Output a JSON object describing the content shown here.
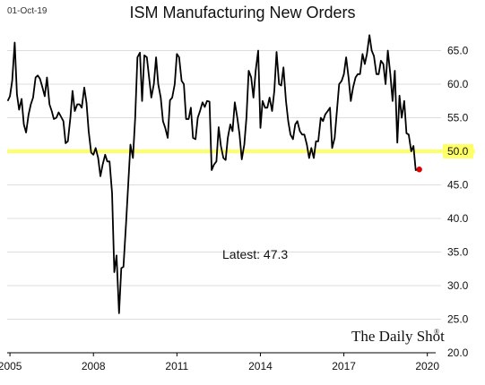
{
  "header": {
    "date": "01-Oct-19",
    "title": "ISM Manufacturing New Orders"
  },
  "watermark": "The Daily Shot",
  "chart_data": {
    "type": "line",
    "title": "ISM Manufacturing New Orders",
    "xlabel": "",
    "ylabel": "",
    "xlim": [
      2004.9,
      2020.3
    ],
    "ylim": [
      20.0,
      68.0
    ],
    "x_ticks": [
      {
        "value": 2005,
        "label": "2005"
      },
      {
        "value": 2008,
        "label": "2008"
      },
      {
        "value": 2011,
        "label": "2011"
      },
      {
        "value": 2014,
        "label": "2014"
      },
      {
        "value": 2017,
        "label": "2017"
      },
      {
        "value": 2020,
        "label": "2020"
      }
    ],
    "y_ticks": [
      {
        "value": 20.0,
        "label": "20.0"
      },
      {
        "value": 25.0,
        "label": "25.0"
      },
      {
        "value": 30.0,
        "label": "30.0"
      },
      {
        "value": 35.0,
        "label": "35.0"
      },
      {
        "value": 40.0,
        "label": "40.0"
      },
      {
        "value": 45.0,
        "label": "45.0"
      },
      {
        "value": 50.0,
        "label": "50.0",
        "highlight": true
      },
      {
        "value": 55.0,
        "label": "55.0"
      },
      {
        "value": 60.0,
        "label": "60.0"
      },
      {
        "value": 65.0,
        "label": "65.0"
      }
    ],
    "reference_line": {
      "value": 50.0,
      "color": "#ffff66"
    },
    "annotation": "Latest:  47.3",
    "latest_point": {
      "x": 2019.71,
      "y": 47.3,
      "color": "#dd0000"
    },
    "grid": "horizontal",
    "line_color": "#000000",
    "series": [
      {
        "values": [
          [
            2004.92,
            57.5
          ],
          [
            2005.0,
            58.2
          ],
          [
            2005.08,
            60.5
          ],
          [
            2005.17,
            66.2
          ],
          [
            2005.25,
            58.5
          ],
          [
            2005.33,
            56.2
          ],
          [
            2005.42,
            57.8
          ],
          [
            2005.5,
            54.0
          ],
          [
            2005.58,
            52.8
          ],
          [
            2005.67,
            55.5
          ],
          [
            2005.75,
            57.0
          ],
          [
            2005.83,
            58.0
          ],
          [
            2005.92,
            61.0
          ],
          [
            2006.0,
            61.3
          ],
          [
            2006.08,
            60.8
          ],
          [
            2006.17,
            59.5
          ],
          [
            2006.25,
            58.2
          ],
          [
            2006.33,
            61.0
          ],
          [
            2006.42,
            57.0
          ],
          [
            2006.5,
            56.0
          ],
          [
            2006.58,
            54.8
          ],
          [
            2006.67,
            55.0
          ],
          [
            2006.75,
            55.8
          ],
          [
            2006.83,
            55.2
          ],
          [
            2006.92,
            54.5
          ],
          [
            2007.0,
            51.2
          ],
          [
            2007.08,
            51.5
          ],
          [
            2007.17,
            55.0
          ],
          [
            2007.25,
            59.0
          ],
          [
            2007.33,
            56.0
          ],
          [
            2007.42,
            57.0
          ],
          [
            2007.5,
            57.0
          ],
          [
            2007.58,
            56.5
          ],
          [
            2007.67,
            59.5
          ],
          [
            2007.75,
            57.2
          ],
          [
            2007.83,
            53.0
          ],
          [
            2007.92,
            49.8
          ],
          [
            2008.0,
            49.5
          ],
          [
            2008.08,
            50.5
          ],
          [
            2008.17,
            49.0
          ],
          [
            2008.25,
            46.3
          ],
          [
            2008.33,
            48.0
          ],
          [
            2008.42,
            49.5
          ],
          [
            2008.5,
            48.5
          ],
          [
            2008.58,
            48.5
          ],
          [
            2008.67,
            43.8
          ],
          [
            2008.75,
            32.0
          ],
          [
            2008.83,
            34.5
          ],
          [
            2008.92,
            25.9
          ],
          [
            2009.0,
            32.6
          ],
          [
            2009.08,
            32.8
          ],
          [
            2009.17,
            39.0
          ],
          [
            2009.25,
            45.0
          ],
          [
            2009.33,
            51.0
          ],
          [
            2009.42,
            49.0
          ],
          [
            2009.5,
            55.0
          ],
          [
            2009.58,
            64.0
          ],
          [
            2009.67,
            64.7
          ],
          [
            2009.75,
            57.5
          ],
          [
            2009.83,
            64.3
          ],
          [
            2009.92,
            64.0
          ],
          [
            2010.0,
            61.0
          ],
          [
            2010.08,
            58.0
          ],
          [
            2010.17,
            60.0
          ],
          [
            2010.25,
            64.0
          ],
          [
            2010.33,
            60.0
          ],
          [
            2010.42,
            58.0
          ],
          [
            2010.5,
            54.5
          ],
          [
            2010.58,
            53.5
          ],
          [
            2010.67,
            52.0
          ],
          [
            2010.75,
            57.6
          ],
          [
            2010.83,
            58.0
          ],
          [
            2010.92,
            60.0
          ],
          [
            2011.0,
            64.5
          ],
          [
            2011.08,
            64.0
          ],
          [
            2011.17,
            60.5
          ],
          [
            2011.25,
            60.0
          ],
          [
            2011.33,
            54.8
          ],
          [
            2011.42,
            54.8
          ],
          [
            2011.5,
            56.5
          ],
          [
            2011.58,
            52.0
          ],
          [
            2011.67,
            51.8
          ],
          [
            2011.75,
            55.0
          ],
          [
            2011.83,
            56.0
          ],
          [
            2011.92,
            57.3
          ],
          [
            2012.0,
            56.6
          ],
          [
            2012.08,
            57.5
          ],
          [
            2012.17,
            57.4
          ],
          [
            2012.25,
            47.2
          ],
          [
            2012.33,
            48.0
          ],
          [
            2012.42,
            48.5
          ],
          [
            2012.5,
            53.6
          ],
          [
            2012.58,
            50.8
          ],
          [
            2012.67,
            49.0
          ],
          [
            2012.75,
            48.7
          ],
          [
            2012.83,
            52.0
          ],
          [
            2012.92,
            54.0
          ],
          [
            2013.0,
            53.0
          ],
          [
            2013.08,
            57.3
          ],
          [
            2013.17,
            55.0
          ],
          [
            2013.25,
            52.5
          ],
          [
            2013.33,
            48.8
          ],
          [
            2013.42,
            51.0
          ],
          [
            2013.5,
            55.0
          ],
          [
            2013.58,
            62.0
          ],
          [
            2013.67,
            61.0
          ],
          [
            2013.75,
            58.0
          ],
          [
            2013.83,
            62.0
          ],
          [
            2013.92,
            65.0
          ],
          [
            2014.0,
            53.5
          ],
          [
            2014.08,
            57.5
          ],
          [
            2014.17,
            56.5
          ],
          [
            2014.25,
            56.5
          ],
          [
            2014.33,
            58.0
          ],
          [
            2014.42,
            56.0
          ],
          [
            2014.5,
            59.0
          ],
          [
            2014.58,
            64.8
          ],
          [
            2014.67,
            60.0
          ],
          [
            2014.75,
            59.8
          ],
          [
            2014.83,
            62.5
          ],
          [
            2014.92,
            57.5
          ],
          [
            2015.0,
            54.5
          ],
          [
            2015.08,
            52.5
          ],
          [
            2015.17,
            51.8
          ],
          [
            2015.25,
            54.0
          ],
          [
            2015.33,
            54.5
          ],
          [
            2015.42,
            53.0
          ],
          [
            2015.5,
            52.5
          ],
          [
            2015.58,
            52.5
          ],
          [
            2015.67,
            51.0
          ],
          [
            2015.75,
            49.0
          ],
          [
            2015.83,
            50.5
          ],
          [
            2015.92,
            49.0
          ],
          [
            2016.0,
            51.5
          ],
          [
            2016.08,
            51.5
          ],
          [
            2016.17,
            55.0
          ],
          [
            2016.25,
            54.5
          ],
          [
            2016.33,
            55.5
          ],
          [
            2016.42,
            56.0
          ],
          [
            2016.5,
            56.5
          ],
          [
            2016.58,
            50.5
          ],
          [
            2016.67,
            52.0
          ],
          [
            2016.75,
            56.0
          ],
          [
            2016.83,
            60.0
          ],
          [
            2016.92,
            60.5
          ],
          [
            2017.0,
            61.5
          ],
          [
            2017.08,
            64.0
          ],
          [
            2017.17,
            61.0
          ],
          [
            2017.25,
            57.5
          ],
          [
            2017.33,
            59.5
          ],
          [
            2017.42,
            61.0
          ],
          [
            2017.5,
            61.5
          ],
          [
            2017.58,
            61.5
          ],
          [
            2017.67,
            64.5
          ],
          [
            2017.75,
            63.0
          ],
          [
            2017.83,
            64.5
          ],
          [
            2017.92,
            67.3
          ],
          [
            2018.0,
            65.0
          ],
          [
            2018.08,
            64.2
          ],
          [
            2018.17,
            61.5
          ],
          [
            2018.25,
            61.5
          ],
          [
            2018.33,
            63.5
          ],
          [
            2018.42,
            63.0
          ],
          [
            2018.5,
            60.0
          ],
          [
            2018.58,
            65.0
          ],
          [
            2018.67,
            61.5
          ],
          [
            2018.75,
            57.5
          ],
          [
            2018.83,
            62.0
          ],
          [
            2018.92,
            51.3
          ],
          [
            2019.0,
            58.3
          ],
          [
            2019.08,
            55.0
          ],
          [
            2019.17,
            57.5
          ],
          [
            2019.25,
            52.7
          ],
          [
            2019.33,
            52.5
          ],
          [
            2019.42,
            50.0
          ],
          [
            2019.5,
            50.8
          ],
          [
            2019.58,
            47.2
          ],
          [
            2019.67,
            47.3
          ],
          [
            2019.71,
            47.3
          ]
        ]
      }
    ]
  }
}
